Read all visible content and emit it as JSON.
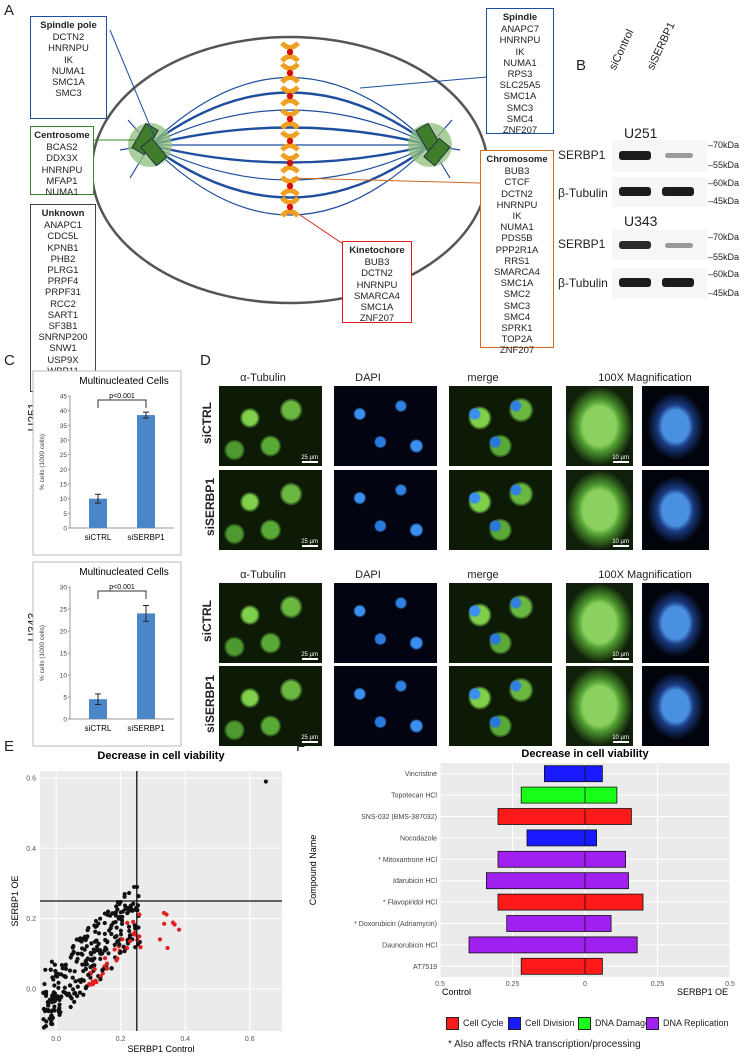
{
  "panels": {
    "A": "A",
    "B": "B",
    "C": "C",
    "D": "D",
    "E": "E",
    "F": "F"
  },
  "panelA": {
    "spindle_pole": {
      "title": "Spindle pole",
      "items": [
        "DCTN2",
        "HNRNPU",
        "IK",
        "NUMA1",
        "SMC1A",
        "SMC3"
      ]
    },
    "centrosome": {
      "title": "Centrosome",
      "items": [
        "BCAS2",
        "DDX3X",
        "HNRNPU",
        "MFAP1",
        "NUMA1"
      ]
    },
    "unknown": {
      "title": "Unknown",
      "items": [
        "ANAPC1",
        "CDC5L",
        "KPNB1",
        "PHB2",
        "PLRG1",
        "PRPF4",
        "PRPF31",
        "RCC2",
        "SART1",
        "SF3B1",
        "SNRNP200",
        "SNW1",
        "USP9X",
        "WBP11"
      ]
    },
    "spindle": {
      "title": "Spindle",
      "items": [
        "ANAPC7",
        "HNRNPU",
        "IK",
        "NUMA1",
        "RPS3",
        "SLC25A5",
        "SMC1A",
        "SMC3",
        "SMC4",
        "ZNF207"
      ]
    },
    "chromosome": {
      "title": "Chromosome",
      "items": [
        "BUB3",
        "CTCF",
        "DCTN2",
        "HNRNPU",
        "IK",
        "NUMA1",
        "PDS5B",
        "PPP2R1A",
        "RRS1",
        "SMARCA4",
        "SMC1A",
        "SMC2",
        "SMC3",
        "SMC4",
        "SPRK1",
        "TOP2A",
        "ZNF207"
      ]
    },
    "kinetochore": {
      "title": "Kinetochore",
      "items": [
        "BUB3",
        "DCTN2",
        "HNRNPU",
        "SMARCA4",
        "SMC1A",
        "ZNF207"
      ]
    }
  },
  "panelB": {
    "lanes": [
      "siControl",
      "siSERBP1"
    ],
    "cell_lines": [
      "U251",
      "U343"
    ],
    "proteins": [
      "SERBP1",
      "β-Tubulin"
    ],
    "markers_top": [
      "70kDa",
      "55kDa",
      "60kDa",
      "45kDa"
    ],
    "markers_bottom": [
      "70kDa",
      "55kDa",
      "60kDa",
      "45kDa"
    ]
  },
  "panelC": {
    "ylabel": "% cells (1000 cells)",
    "pvalue": "p<0.001"
  },
  "panelD": {
    "columns": [
      "α-Tubulin",
      "DAPI",
      "merge",
      "100X Magnification"
    ],
    "rows": [
      "siCTRL",
      "siSERBP1"
    ],
    "scale_small": "25 µm",
    "scale_large": "10 µm"
  },
  "panelF": {
    "xlabel_left": "Control",
    "xlabel_right": "SERBP1 OE",
    "legend": [
      {
        "label": "Cell Cycle",
        "color": "#ff1a1a"
      },
      {
        "label": "Cell Division",
        "color": "#1a1aff"
      },
      {
        "label": "DNA Damage",
        "color": "#1aff1a"
      },
      {
        "label": "DNA Replication",
        "color": "#a020f0"
      }
    ],
    "footnote": "* Also affects rRNA transcription/processing"
  },
  "chart_data": [
    {
      "type": "bar",
      "title": "Multinucleated Cells",
      "row_label": "U251",
      "categories": [
        "siCTRL",
        "siSERBP1"
      ],
      "values": [
        10,
        38.5
      ],
      "errors": [
        1.5,
        1
      ],
      "ylim": [
        0,
        45
      ],
      "yticks": [
        0,
        5,
        10,
        15,
        20,
        25,
        30,
        35,
        40,
        45
      ]
    },
    {
      "type": "bar",
      "title": "Multinucleated Cells",
      "row_label": "U343",
      "categories": [
        "siCTRL",
        "siSERBP1"
      ],
      "values": [
        4.5,
        24
      ],
      "errors": [
        1.2,
        1.8
      ],
      "ylim": [
        0,
        30
      ],
      "yticks": [
        0,
        5,
        10,
        15,
        20,
        25,
        30
      ]
    },
    {
      "type": "scatter",
      "title": "Decrease in cell viability",
      "xlabel": "SERBP1 Control",
      "ylabel": "SERBP1 OE",
      "xlim": [
        -0.05,
        0.7
      ],
      "ylim": [
        -0.12,
        0.62
      ],
      "xticks": [
        0,
        0.2,
        0.4,
        0.6
      ],
      "yticks": [
        0,
        0.2,
        0.4,
        0.6
      ],
      "xtick_labels": [
        "0.0",
        "0.2",
        "0.4",
        "0.6"
      ],
      "ytick_labels": [
        "0.0",
        "0.2",
        "0.4",
        "0.6"
      ],
      "vline": 0.25,
      "hline": 0.25
    },
    {
      "type": "bar",
      "title": "Decrease in cell viability",
      "ylabel": "Compound Name",
      "xlim": [
        -0.5,
        0.5
      ],
      "xticks": [
        -0.5,
        -0.25,
        0,
        0.25,
        0.5
      ],
      "xtick_labels": [
        "0.5",
        "0.25",
        "0",
        "0.25",
        "0.5"
      ],
      "compounds": [
        {
          "name": "Vincristine",
          "control": 0.14,
          "oe": 0.06,
          "category": "Cell Division"
        },
        {
          "name": "Topotecan HCl",
          "control": 0.22,
          "oe": 0.11,
          "category": "DNA Damage"
        },
        {
          "name": "SNS-032 (BMS-387032)",
          "control": 0.3,
          "oe": 0.16,
          "category": "Cell Cycle"
        },
        {
          "name": "Nocodazole",
          "control": 0.2,
          "oe": 0.04,
          "category": "Cell Division"
        },
        {
          "name": "* Mitoxantrone HCl",
          "control": 0.3,
          "oe": 0.14,
          "category": "DNA Replication"
        },
        {
          "name": "Idarubicin HCl",
          "control": 0.34,
          "oe": 0.15,
          "category": "DNA Replication"
        },
        {
          "name": "* Flavopiridol HCl",
          "control": 0.3,
          "oe": 0.2,
          "category": "Cell Cycle"
        },
        {
          "name": "* Doxorubicin (Adriamycin)",
          "control": 0.27,
          "oe": 0.09,
          "category": "DNA Replication"
        },
        {
          "name": "Daunorubicin HCl",
          "control": 0.4,
          "oe": 0.18,
          "category": "DNA Replication"
        },
        {
          "name": "AT7519",
          "control": 0.22,
          "oe": 0.06,
          "category": "Cell Cycle"
        }
      ]
    }
  ]
}
